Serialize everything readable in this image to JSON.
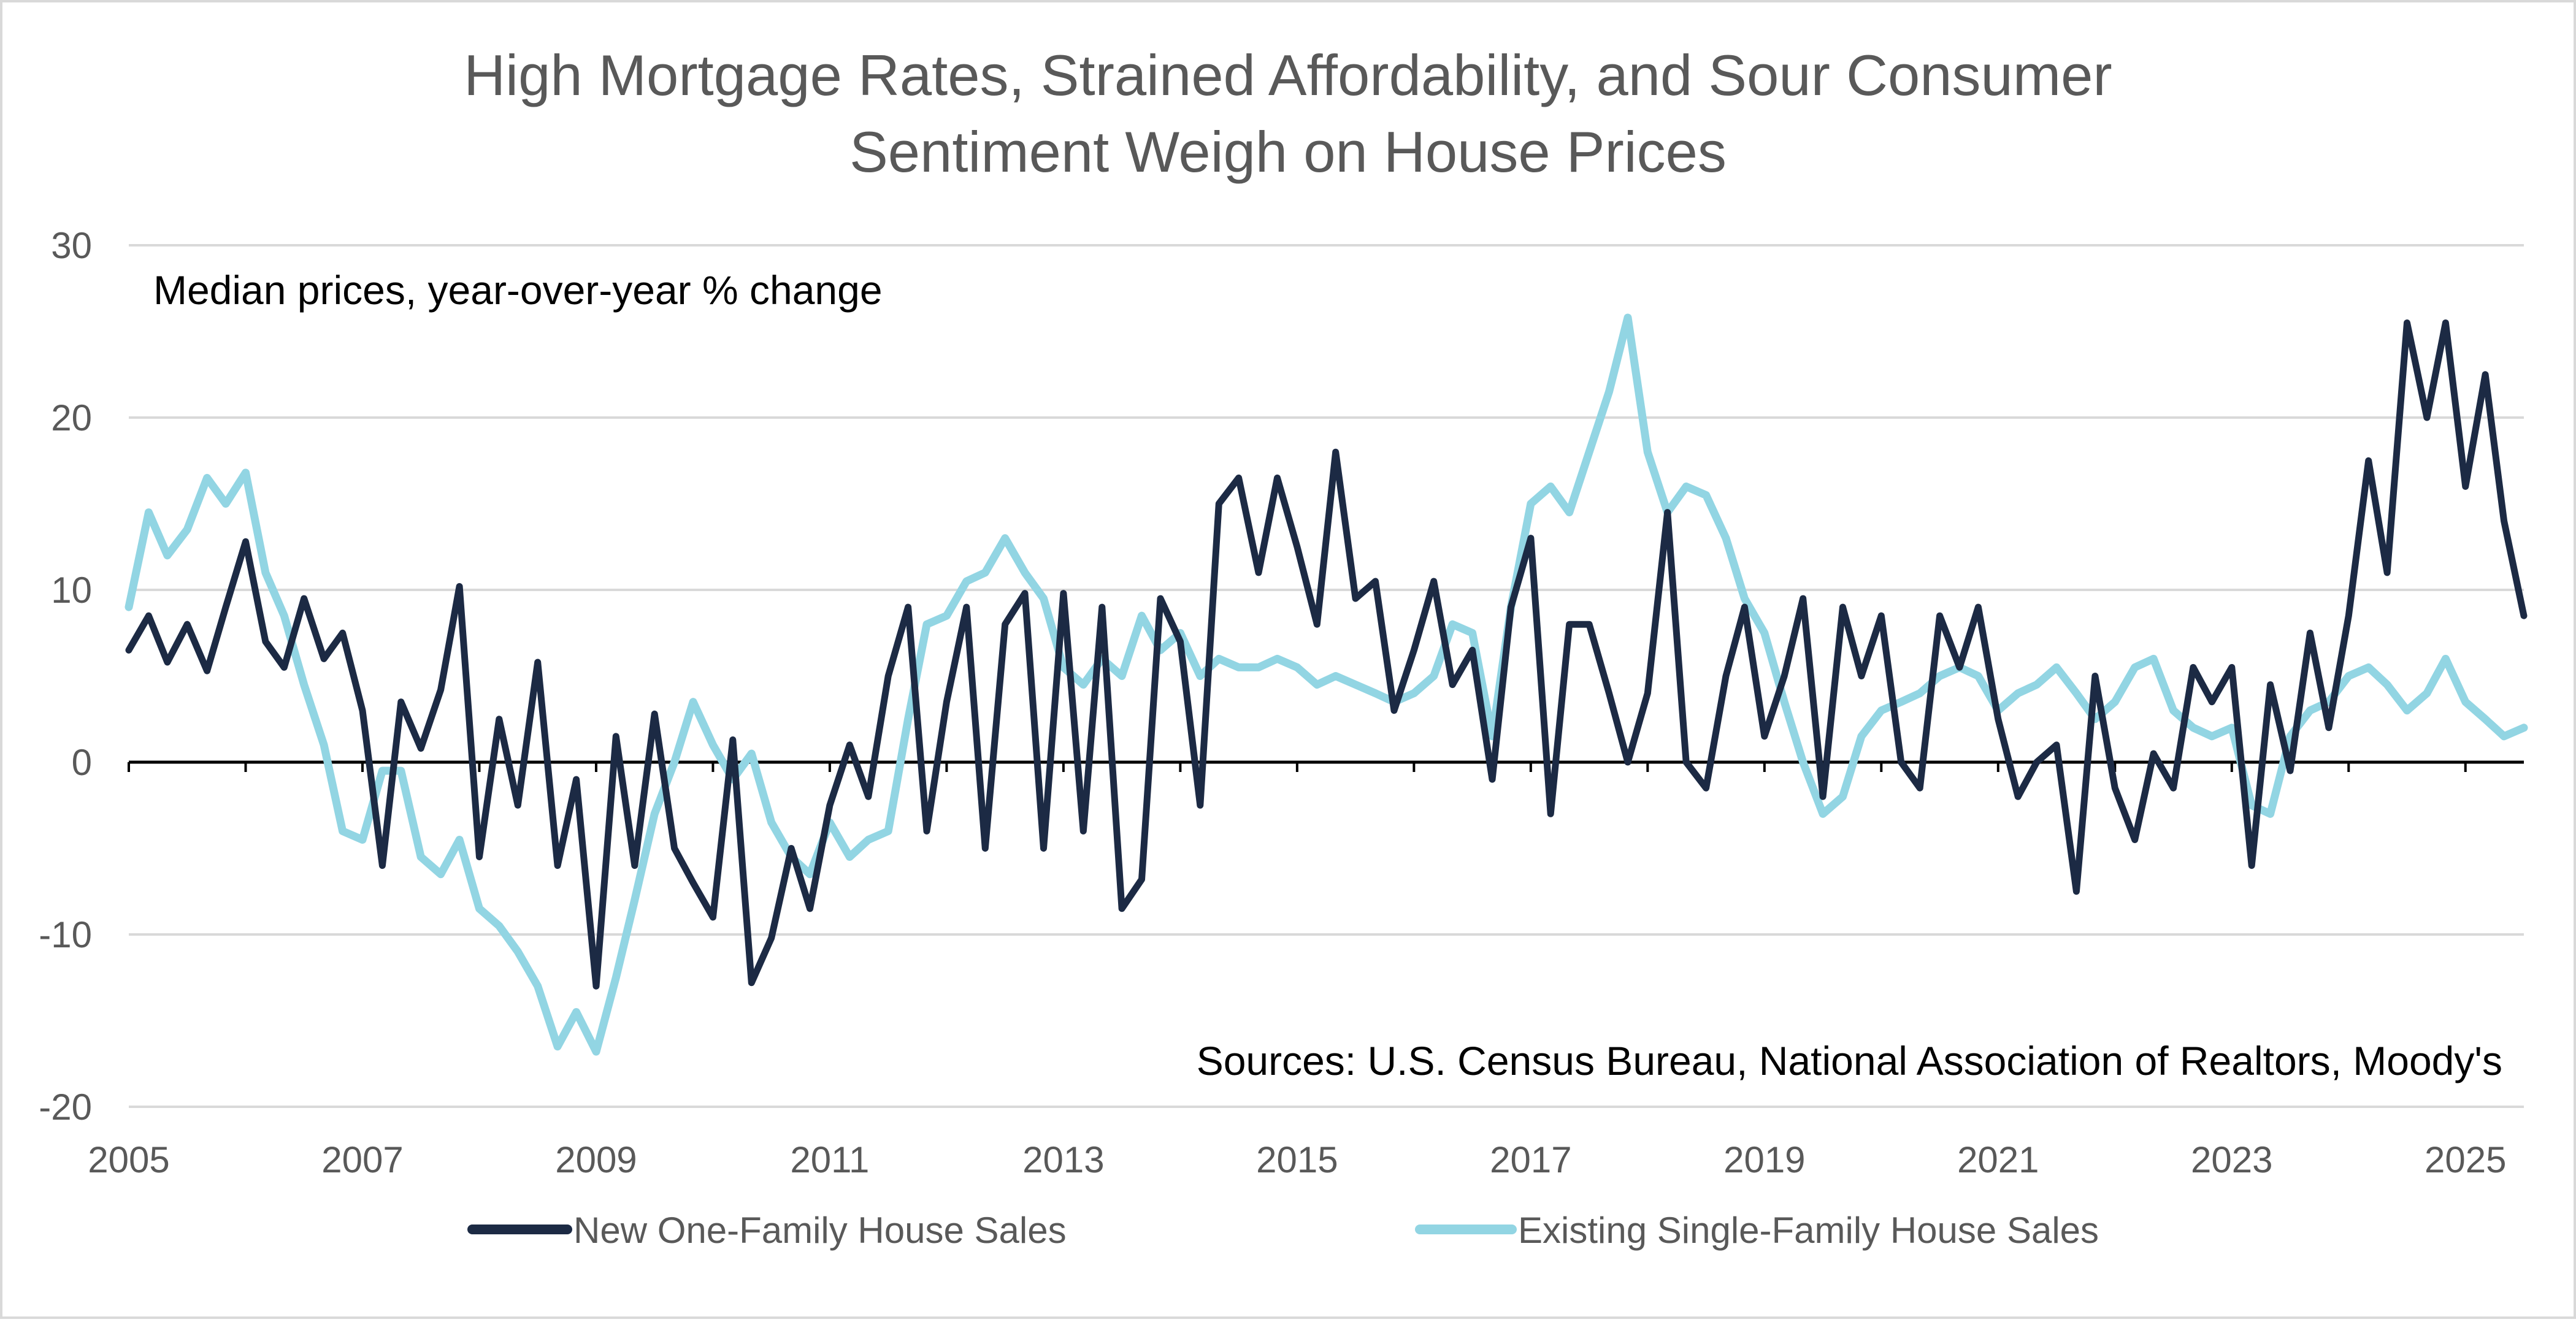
{
  "chart_data": {
    "type": "line",
    "title": [
      "High Mortgage Rates, Strained Affordability, and Sour Consumer",
      "Sentiment Weigh on House Prices"
    ],
    "subtitle": "Median prices, year-over-year % change",
    "source": "Sources: U.S. Census Bureau, National Association of Realtors, Moody's",
    "xlabel": "",
    "ylabel": "",
    "xlim": [
      2005.0,
      2025.5
    ],
    "ylim": [
      -20,
      30
    ],
    "x_ticks": [
      "2005",
      "2007",
      "2009",
      "2011",
      "2013",
      "2015",
      "2017",
      "2019",
      "2021",
      "2023",
      "2025"
    ],
    "y_ticks": [
      "30",
      "20",
      "10",
      "0",
      "-10",
      "-20"
    ],
    "grid": true,
    "legend_position": "bottom",
    "colors": {
      "new": "#1c2a44",
      "existing": "#92d5e3",
      "axis": "#000000",
      "grid": "#d9d9d9"
    },
    "series": [
      {
        "name": "New One-Family House Sales",
        "color": "#1c2a44",
        "points": [
          [
            2005.0,
            6.5
          ],
          [
            2005.17,
            8.5
          ],
          [
            2005.33,
            5.8
          ],
          [
            2005.5,
            8.0
          ],
          [
            2005.67,
            5.3
          ],
          [
            2005.83,
            9.0
          ],
          [
            2006.0,
            12.8
          ],
          [
            2006.17,
            7.0
          ],
          [
            2006.33,
            5.5
          ],
          [
            2006.5,
            9.5
          ],
          [
            2006.67,
            6.0
          ],
          [
            2006.83,
            7.5
          ],
          [
            2007.0,
            3.0
          ],
          [
            2007.17,
            -6.0
          ],
          [
            2007.33,
            3.5
          ],
          [
            2007.5,
            0.8
          ],
          [
            2007.67,
            4.2
          ],
          [
            2007.83,
            10.2
          ],
          [
            2008.0,
            -5.5
          ],
          [
            2008.17,
            2.5
          ],
          [
            2008.33,
            -2.5
          ],
          [
            2008.5,
            5.8
          ],
          [
            2008.67,
            -6.0
          ],
          [
            2008.83,
            -1.0
          ],
          [
            2009.0,
            -13.0
          ],
          [
            2009.17,
            1.5
          ],
          [
            2009.33,
            -6.0
          ],
          [
            2009.5,
            2.8
          ],
          [
            2009.67,
            -5.0
          ],
          [
            2009.83,
            -7.0
          ],
          [
            2010.0,
            -9.0
          ],
          [
            2010.17,
            1.3
          ],
          [
            2010.33,
            -12.8
          ],
          [
            2010.5,
            -10.2
          ],
          [
            2010.67,
            -5.0
          ],
          [
            2010.83,
            -8.5
          ],
          [
            2011.0,
            -2.5
          ],
          [
            2011.17,
            1.0
          ],
          [
            2011.33,
            -2.0
          ],
          [
            2011.5,
            5.0
          ],
          [
            2011.67,
            9.0
          ],
          [
            2011.83,
            -4.0
          ],
          [
            2012.0,
            3.5
          ],
          [
            2012.17,
            9.0
          ],
          [
            2012.33,
            -5.0
          ],
          [
            2012.5,
            8.0
          ],
          [
            2012.67,
            9.8
          ],
          [
            2012.83,
            -5.0
          ],
          [
            2013.0,
            9.8
          ],
          [
            2013.17,
            -4.0
          ],
          [
            2013.33,
            9.0
          ],
          [
            2013.5,
            -8.5
          ],
          [
            2013.67,
            -6.8
          ],
          [
            2013.83,
            9.5
          ],
          [
            2014.0,
            7.0
          ],
          [
            2014.17,
            -2.5
          ],
          [
            2014.33,
            15.0
          ],
          [
            2014.5,
            16.5
          ],
          [
            2014.67,
            11.0
          ],
          [
            2014.83,
            16.5
          ],
          [
            2015.0,
            12.5
          ],
          [
            2015.17,
            8.0
          ],
          [
            2015.33,
            18.0
          ],
          [
            2015.5,
            9.5
          ],
          [
            2015.67,
            10.5
          ],
          [
            2015.83,
            3.0
          ],
          [
            2016.0,
            6.5
          ],
          [
            2016.17,
            10.5
          ],
          [
            2016.33,
            4.5
          ],
          [
            2016.5,
            6.5
          ],
          [
            2016.67,
            -1.0
          ],
          [
            2016.83,
            9.0
          ],
          [
            2017.0,
            13.0
          ],
          [
            2017.17,
            -3.0
          ],
          [
            2017.33,
            8.0
          ],
          [
            2017.5,
            8.0
          ],
          [
            2017.67,
            4.0
          ],
          [
            2017.83,
            0.0
          ],
          [
            2018.0,
            4.0
          ],
          [
            2018.17,
            14.5
          ],
          [
            2018.33,
            0.0
          ],
          [
            2018.5,
            -1.5
          ],
          [
            2018.67,
            5.0
          ],
          [
            2018.83,
            9.0
          ],
          [
            2019.0,
            1.5
          ],
          [
            2019.17,
            5.0
          ],
          [
            2019.33,
            9.5
          ],
          [
            2019.5,
            -2.0
          ],
          [
            2019.67,
            9.0
          ],
          [
            2019.83,
            5.0
          ],
          [
            2020.0,
            8.5
          ],
          [
            2020.17,
            0.0
          ],
          [
            2020.33,
            -1.5
          ],
          [
            2020.5,
            8.5
          ],
          [
            2020.67,
            5.5
          ],
          [
            2020.83,
            9.0
          ],
          [
            2021.0,
            2.5
          ],
          [
            2021.17,
            -2.0
          ],
          [
            2021.33,
            0.0
          ],
          [
            2021.5,
            1.0
          ],
          [
            2021.67,
            -7.5
          ],
          [
            2021.83,
            5.0
          ],
          [
            2022.0,
            -1.5
          ],
          [
            2022.17,
            -4.5
          ],
          [
            2022.33,
            0.5
          ],
          [
            2022.5,
            -1.5
          ],
          [
            2022.67,
            5.5
          ],
          [
            2022.83,
            3.5
          ],
          [
            2023.0,
            5.5
          ],
          [
            2023.17,
            -6.0
          ],
          [
            2023.33,
            4.5
          ],
          [
            2023.5,
            -0.5
          ],
          [
            2023.67,
            7.5
          ],
          [
            2023.83,
            2.0
          ],
          [
            2024.0,
            8.5
          ],
          [
            2024.17,
            17.5
          ],
          [
            2024.33,
            11.0
          ],
          [
            2024.5,
            25.5
          ],
          [
            2024.67,
            20.0
          ],
          [
            2024.83,
            25.5
          ],
          [
            2025.0,
            16.0
          ],
          [
            2025.17,
            22.5
          ],
          [
            2025.33,
            14.0
          ],
          [
            2025.5,
            8.5
          ]
        ]
      },
      {
        "name": "Existing Single-Family House Sales",
        "color": "#92d5e3",
        "points": [
          [
            2005.0,
            9.0
          ],
          [
            2005.17,
            14.5
          ],
          [
            2005.33,
            12.0
          ],
          [
            2005.5,
            13.5
          ],
          [
            2005.67,
            16.5
          ],
          [
            2005.83,
            15.0
          ],
          [
            2006.0,
            16.8
          ],
          [
            2006.17,
            11.0
          ],
          [
            2006.33,
            8.5
          ],
          [
            2006.5,
            4.5
          ],
          [
            2006.67,
            1.0
          ],
          [
            2006.83,
            -4.0
          ],
          [
            2007.0,
            -4.5
          ],
          [
            2007.17,
            -0.5
          ],
          [
            2007.33,
            -0.5
          ],
          [
            2007.5,
            -5.5
          ],
          [
            2007.67,
            -6.5
          ],
          [
            2007.83,
            -4.5
          ],
          [
            2008.0,
            -8.5
          ],
          [
            2008.17,
            -9.5
          ],
          [
            2008.33,
            -11.0
          ],
          [
            2008.5,
            -13.0
          ],
          [
            2008.67,
            -16.5
          ],
          [
            2008.83,
            -14.5
          ],
          [
            2009.0,
            -16.8
          ],
          [
            2009.17,
            -12.5
          ],
          [
            2009.33,
            -8.0
          ],
          [
            2009.5,
            -3.0
          ],
          [
            2009.67,
            0.0
          ],
          [
            2009.83,
            3.5
          ],
          [
            2010.0,
            1.0
          ],
          [
            2010.17,
            -1.0
          ],
          [
            2010.33,
            0.5
          ],
          [
            2010.5,
            -3.5
          ],
          [
            2010.67,
            -5.5
          ],
          [
            2010.83,
            -6.5
          ],
          [
            2011.0,
            -3.5
          ],
          [
            2011.17,
            -5.5
          ],
          [
            2011.33,
            -4.5
          ],
          [
            2011.5,
            -4.0
          ],
          [
            2011.67,
            2.5
          ],
          [
            2011.83,
            8.0
          ],
          [
            2012.0,
            8.5
          ],
          [
            2012.17,
            10.5
          ],
          [
            2012.33,
            11.0
          ],
          [
            2012.5,
            13.0
          ],
          [
            2012.67,
            11.0
          ],
          [
            2012.83,
            9.5
          ],
          [
            2013.0,
            5.5
          ],
          [
            2013.17,
            4.5
          ],
          [
            2013.33,
            6.0
          ],
          [
            2013.5,
            5.0
          ],
          [
            2013.67,
            8.5
          ],
          [
            2013.83,
            6.5
          ],
          [
            2014.0,
            7.5
          ],
          [
            2014.17,
            5.0
          ],
          [
            2014.33,
            6.0
          ],
          [
            2014.5,
            5.5
          ],
          [
            2014.67,
            5.5
          ],
          [
            2014.83,
            6.0
          ],
          [
            2015.0,
            5.5
          ],
          [
            2015.17,
            4.5
          ],
          [
            2015.33,
            5.0
          ],
          [
            2015.5,
            4.5
          ],
          [
            2015.67,
            4.0
          ],
          [
            2015.83,
            3.5
          ],
          [
            2016.0,
            4.0
          ],
          [
            2016.17,
            5.0
          ],
          [
            2016.33,
            8.0
          ],
          [
            2016.5,
            7.5
          ],
          [
            2016.67,
            1.5
          ],
          [
            2016.83,
            9.0
          ],
          [
            2017.0,
            15.0
          ],
          [
            2017.17,
            16.0
          ],
          [
            2017.33,
            14.5
          ],
          [
            2017.5,
            18.0
          ],
          [
            2017.67,
            21.5
          ],
          [
            2017.83,
            25.8
          ],
          [
            2018.0,
            18.0
          ],
          [
            2018.17,
            14.5
          ],
          [
            2018.33,
            16.0
          ],
          [
            2018.5,
            15.5
          ],
          [
            2018.67,
            13.0
          ],
          [
            2018.83,
            9.5
          ],
          [
            2019.0,
            7.5
          ],
          [
            2019.17,
            3.5
          ],
          [
            2019.33,
            0.0
          ],
          [
            2019.5,
            -3.0
          ],
          [
            2019.67,
            -2.0
          ],
          [
            2019.83,
            1.5
          ],
          [
            2020.0,
            3.0
          ],
          [
            2020.17,
            3.5
          ],
          [
            2020.33,
            4.0
          ],
          [
            2020.5,
            5.0
          ],
          [
            2020.67,
            5.5
          ],
          [
            2020.83,
            5.0
          ],
          [
            2021.0,
            3.0
          ],
          [
            2021.17,
            4.0
          ],
          [
            2021.33,
            4.5
          ],
          [
            2021.5,
            5.5
          ],
          [
            2021.67,
            4.0
          ],
          [
            2021.83,
            2.5
          ],
          [
            2022.0,
            3.5
          ],
          [
            2022.17,
            5.5
          ],
          [
            2022.33,
            6.0
          ],
          [
            2022.5,
            3.0
          ],
          [
            2022.67,
            2.0
          ],
          [
            2022.83,
            1.5
          ],
          [
            2023.0,
            2.0
          ],
          [
            2023.17,
            -2.5
          ],
          [
            2023.33,
            -3.0
          ],
          [
            2023.5,
            1.5
          ],
          [
            2023.67,
            3.0
          ],
          [
            2023.83,
            3.5
          ],
          [
            2024.0,
            5.0
          ],
          [
            2024.17,
            5.5
          ],
          [
            2024.33,
            4.5
          ],
          [
            2024.5,
            3.0
          ],
          [
            2024.67,
            4.0
          ],
          [
            2024.83,
            6.0
          ],
          [
            2025.0,
            3.5
          ],
          [
            2025.17,
            2.5
          ],
          [
            2025.33,
            1.5
          ],
          [
            2025.5,
            2.0
          ]
        ]
      }
    ]
  }
}
